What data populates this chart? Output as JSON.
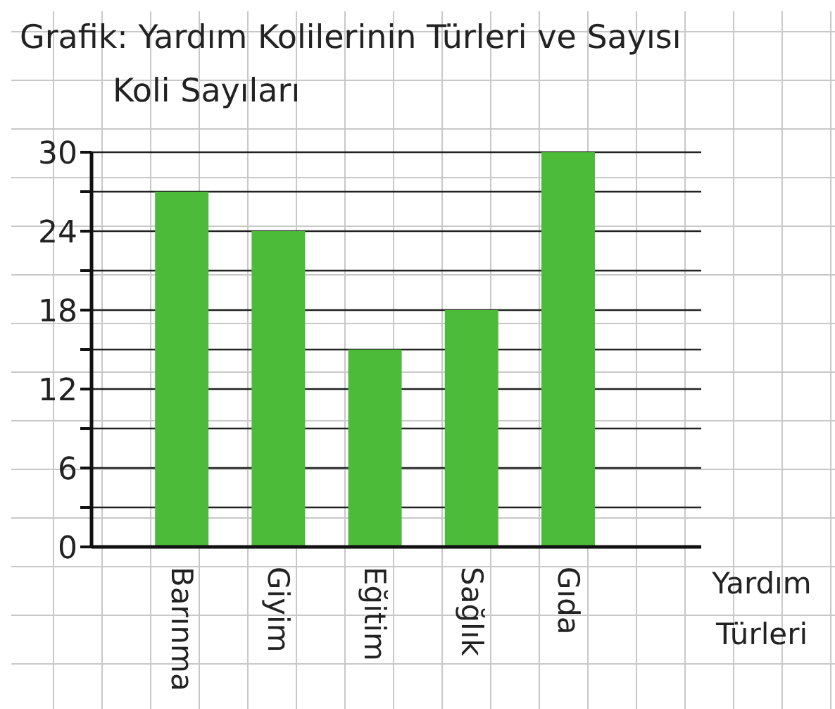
{
  "chart_data": {
    "type": "bar",
    "title": "Grafik: Yardım Kolilerinin Türleri ve Sayısı",
    "ylabel": "Koli Sayıları",
    "xlabel": "Yardım Türleri",
    "categories": [
      "Barınma",
      "Giyim",
      "Eğitim",
      "Sağlık",
      "Gıda"
    ],
    "values": [
      27,
      24,
      15,
      18,
      30
    ],
    "color": "#4dbb3a",
    "ylim": [
      0,
      30
    ],
    "yticks": [
      0,
      {
        "value": 3,
        "label": null
      },
      6,
      {
        "value": 9,
        "label": null
      },
      12,
      {
        "value": 15,
        "label": null
      },
      18,
      {
        "value": 21,
        "label": null
      },
      24,
      {
        "value": 27,
        "label": null
      },
      30
    ],
    "grid": "y"
  }
}
